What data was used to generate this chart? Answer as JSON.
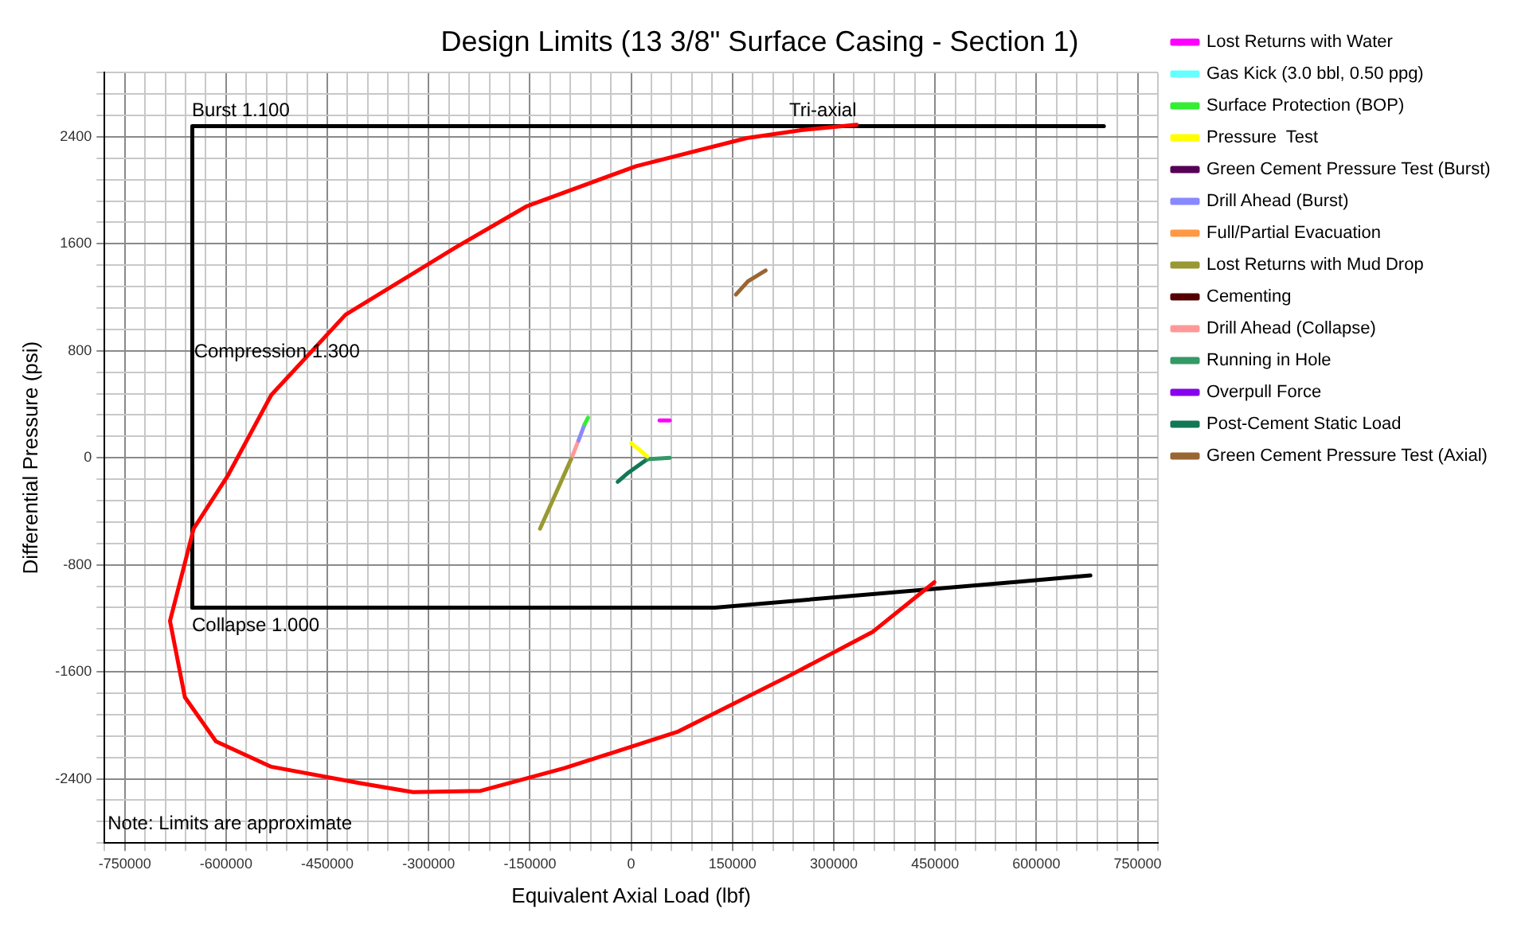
{
  "chart_data": {
    "type": "line",
    "title": "Design Limits (13 3/8\" Surface Casing - Section 1)",
    "xlabel": "Equivalent Axial Load (lbf)",
    "ylabel": "Differential Pressure (psi)",
    "xlim": [
      -780000,
      780000
    ],
    "ylim": [
      -2880,
      2880
    ],
    "xticks": [
      {
        "value": -780000,
        "label": null
      },
      -750000,
      {
        "value": -720000,
        "label": null
      },
      {
        "value": -690000,
        "label": null
      },
      {
        "value": -660000,
        "label": null
      },
      {
        "value": -630000,
        "label": null
      },
      -600000,
      {
        "value": -570000,
        "label": null
      },
      {
        "value": -540000,
        "label": null
      },
      {
        "value": -510000,
        "label": null
      },
      {
        "value": -480000,
        "label": null
      },
      -450000,
      {
        "value": -420000,
        "label": null
      },
      {
        "value": -390000,
        "label": null
      },
      {
        "value": -360000,
        "label": null
      },
      {
        "value": -330000,
        "label": null
      },
      -300000,
      {
        "value": -270000,
        "label": null
      },
      {
        "value": -240000,
        "label": null
      },
      {
        "value": -210000,
        "label": null
      },
      {
        "value": -180000,
        "label": null
      },
      -150000,
      {
        "value": -120000,
        "label": null
      },
      {
        "value": -90000,
        "label": null
      },
      {
        "value": -60000,
        "label": null
      },
      {
        "value": -30000,
        "label": null
      },
      0,
      {
        "value": 30000,
        "label": null
      },
      {
        "value": 60000,
        "label": null
      },
      {
        "value": 90000,
        "label": null
      },
      {
        "value": 120000,
        "label": null
      },
      150000,
      {
        "value": 180000,
        "label": null
      },
      {
        "value": 210000,
        "label": null
      },
      {
        "value": 240000,
        "label": null
      },
      {
        "value": 270000,
        "label": null
      },
      300000,
      {
        "value": 330000,
        "label": null
      },
      {
        "value": 360000,
        "label": null
      },
      {
        "value": 390000,
        "label": null
      },
      {
        "value": 420000,
        "label": null
      },
      450000,
      {
        "value": 480000,
        "label": null
      },
      {
        "value": 510000,
        "label": null
      },
      {
        "value": 540000,
        "label": null
      },
      {
        "value": 570000,
        "label": null
      },
      600000,
      {
        "value": 630000,
        "label": null
      },
      {
        "value": 660000,
        "label": null
      },
      {
        "value": 690000,
        "label": null
      },
      {
        "value": 720000,
        "label": null
      },
      750000,
      {
        "value": 780000,
        "label": null
      }
    ],
    "yticks": [
      {
        "value": -2880,
        "label": null
      },
      {
        "value": -2720,
        "label": null
      },
      {
        "value": -2560,
        "label": null
      },
      -2400,
      {
        "value": -2240,
        "label": null
      },
      {
        "value": -2080,
        "label": null
      },
      {
        "value": -1920,
        "label": null
      },
      {
        "value": -1760,
        "label": null
      },
      -1600,
      {
        "value": -1440,
        "label": null
      },
      {
        "value": -1280,
        "label": null
      },
      {
        "value": -1120,
        "label": null
      },
      {
        "value": -960,
        "label": null
      },
      -800,
      {
        "value": -640,
        "label": null
      },
      {
        "value": -480,
        "label": null
      },
      {
        "value": -320,
        "label": null
      },
      {
        "value": -160,
        "label": null
      },
      0,
      {
        "value": 160,
        "label": null
      },
      {
        "value": 320,
        "label": null
      },
      {
        "value": 480,
        "label": null
      },
      {
        "value": 640,
        "label": null
      },
      800,
      {
        "value": 960,
        "label": null
      },
      {
        "value": 1120,
        "label": null
      },
      {
        "value": 1280,
        "label": null
      },
      {
        "value": 1440,
        "label": null
      },
      1600,
      {
        "value": 1760,
        "label": null
      },
      {
        "value": 1920,
        "label": null
      },
      {
        "value": 2080,
        "label": null
      },
      {
        "value": 2240,
        "label": null
      },
      2400,
      {
        "value": 2560,
        "label": null
      },
      {
        "value": 2720,
        "label": null
      },
      {
        "value": 2880,
        "label": null
      }
    ],
    "grid": true,
    "legend": "right",
    "marker": "none",
    "line_style": "solid",
    "annotations": [
      "Burst 1.100",
      "Compression 1.300",
      "Collapse 1.000",
      "Tri-axial",
      "Note: Limits are approximate"
    ],
    "series": [
      {
        "name": "Lost Returns with Water",
        "color": "#ff00ff",
        "x": [
          42000,
          57000
        ],
        "values": [
          280,
          280
        ]
      },
      {
        "name": "Gas Kick (3.0 bbl, 0.50 ppg)",
        "color": "#66ffff"
      },
      {
        "name": "Surface Protection (BOP)",
        "color": "#33ee33",
        "x": [
          -69000,
          -64000
        ],
        "values": [
          250,
          300
        ]
      },
      {
        "name": "Pressure  Test",
        "color": "#ffff00",
        "x": [
          0,
          24000
        ],
        "values": [
          110,
          10
        ]
      },
      {
        "name": "Green Cement Pressure Test (Burst)",
        "color": "#550055"
      },
      {
        "name": "Drill Ahead (Burst)",
        "color": "#8888ff",
        "x": [
          -78000,
          -69000
        ],
        "values": [
          130,
          250
        ]
      },
      {
        "name": "Full/Partial Evacuation",
        "color": "#ff9944"
      },
      {
        "name": "Lost Returns with Mud Drop",
        "color": "#999933",
        "x": [
          -135000,
          -89000
        ],
        "values": [
          -530,
          -10
        ]
      },
      {
        "name": "Cementing",
        "color": "#550000"
      },
      {
        "name": "Drill Ahead (Collapse)",
        "color": "#ff9999",
        "x": [
          -89000,
          -78000
        ],
        "values": [
          -10,
          130
        ]
      },
      {
        "name": "Running in Hole",
        "color": "#339966",
        "x": [
          24000,
          57000
        ],
        "values": [
          -10,
          0
        ]
      },
      {
        "name": "Overpull Force",
        "color": "#8800ee"
      },
      {
        "name": "Post-Cement Static Load",
        "color": "#117755",
        "x": [
          -20000,
          -4000,
          24000
        ],
        "values": [
          -180,
          -110,
          -10
        ]
      },
      {
        "name": "Green Cement Pressure Test (Axial)",
        "color": "#996633",
        "x": [
          155000,
          173000,
          199000
        ],
        "values": [
          1220,
          1320,
          1400
        ]
      },
      {
        "color": "#ff0000",
        "x": [
          449000,
          358000,
          234000,
          68000,
          -99000,
          -223000,
          -323000,
          -405000,
          -533000,
          -615000,
          -661000,
          -683000,
          -648000,
          -597000,
          -533000,
          -423000,
          -261000,
          -155000,
          7000,
          171000,
          252000,
          334000
        ],
        "values": [
          -930,
          -1300,
          -1630,
          -2050,
          -2320,
          -2490,
          -2500,
          -2430,
          -2310,
          -2120,
          -1790,
          -1220,
          -530,
          -130,
          470,
          1070,
          1570,
          1880,
          2180,
          2390,
          2450,
          2490
        ]
      },
      {
        "color": "#000000",
        "x": [
          -650000,
          -650000,
          700000
        ],
        "values": [
          -1120,
          2480,
          2480
        ]
      },
      {
        "color": "#000000",
        "x": [
          -650000,
          124000,
          566000,
          680000
        ],
        "values": [
          -1120,
          -1120,
          -930,
          -880
        ]
      }
    ]
  }
}
